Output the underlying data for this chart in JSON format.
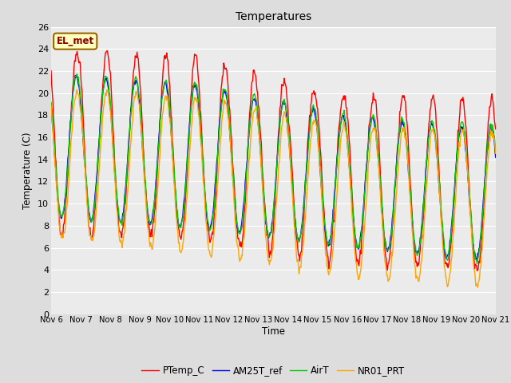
{
  "title": "Temperatures",
  "xlabel": "Time",
  "ylabel": "Temperature (C)",
  "ylim": [
    0,
    26
  ],
  "yticks": [
    0,
    2,
    4,
    6,
    8,
    10,
    12,
    14,
    16,
    18,
    20,
    22,
    24,
    26
  ],
  "annotation_text": "EL_met",
  "annotation_color": "#8B0000",
  "annotation_bg": "#FFFFC0",
  "annotation_border": "#996600",
  "series_colors": [
    "#FF0000",
    "#0000EE",
    "#00CC00",
    "#FFA500"
  ],
  "series_labels": [
    "PTemp_C",
    "AM25T_ref",
    "AirT",
    "NR01_PRT"
  ],
  "line_width": 1.0,
  "fig_facecolor": "#DDDDDD",
  "ax_facecolor": "#EBEBEB",
  "grid_color": "#FFFFFF",
  "x_tick_labels": [
    "Nov 6",
    "Nov 7",
    "Nov 8",
    "Nov 9",
    "Nov 10",
    "Nov 11",
    "Nov 12",
    "Nov 13",
    "Nov 14",
    "Nov 15",
    "Nov 16",
    "Nov 17",
    "Nov 18",
    "Nov 19",
    "Nov 20",
    "Nov 21"
  ],
  "n_days": 15
}
